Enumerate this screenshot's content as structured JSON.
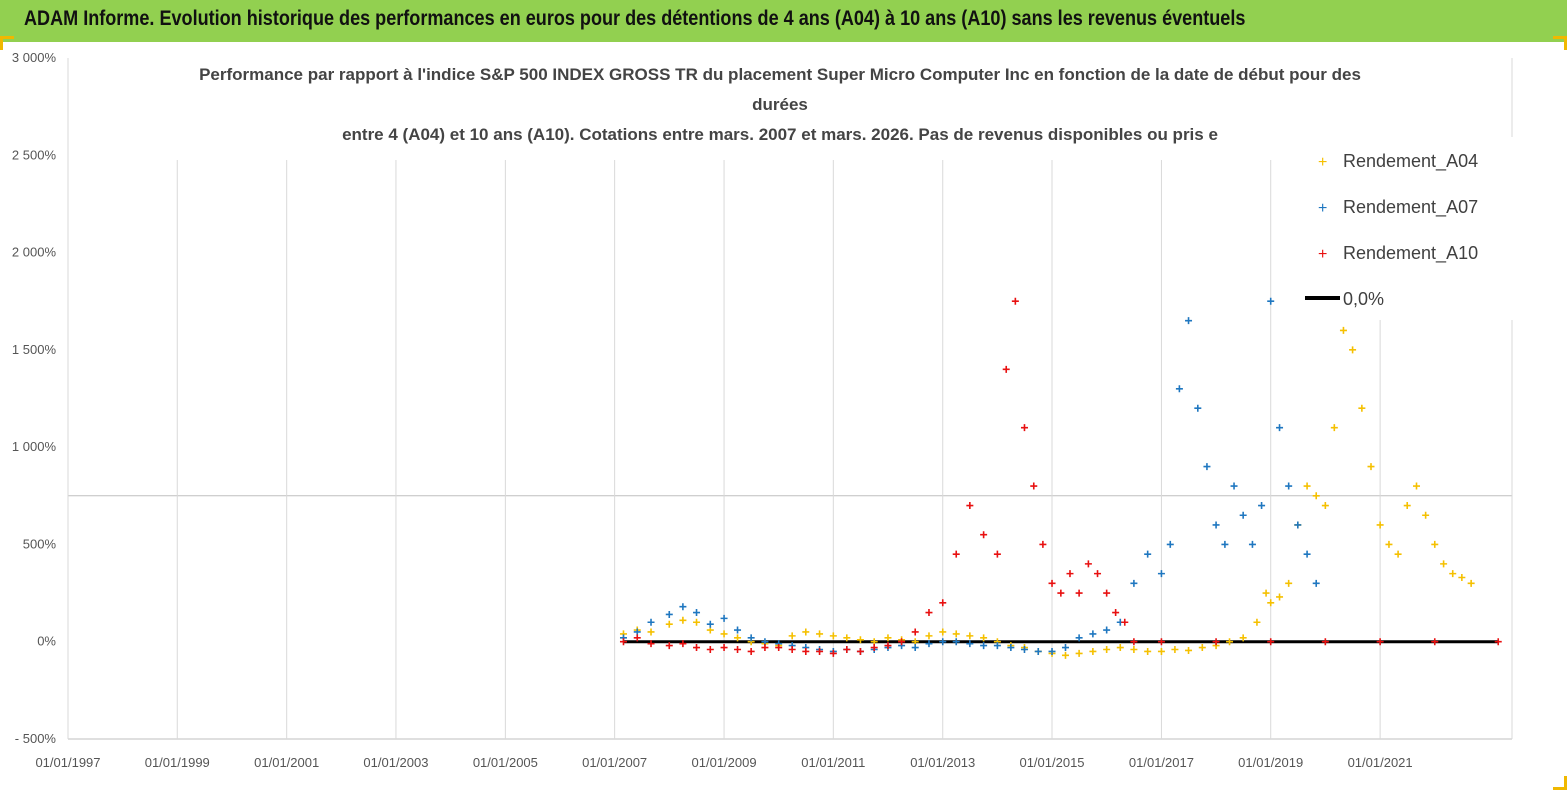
{
  "header": {
    "title": "ADAM Informe. Evolution historique des performances en euros pour des détentions de 4 ans (A04) à 10 ans (A10) sans les revenus éventuels"
  },
  "colors": {
    "header_bg": "#92d050",
    "A04": "#f5c000",
    "A07": "#1f77c0",
    "A10": "#e81010",
    "zero": "#000000",
    "corner_marks": "#f0b800"
  },
  "chart_data": {
    "type": "scatter",
    "title_lines": [
      "Performance par rapport à l'indice S&P 500 INDEX GROSS TR  du placement Super Micro Computer Inc en fonction de la date de début pour des",
      "durées",
      "entre 4 (A04) et 10 ans (A10). Cotations entre mars. 2007 et mars. 2026. Pas de revenus disponibles ou pris e"
    ],
    "x_type": "date",
    "xlim": [
      "1997-01-01",
      "2023-06-01"
    ],
    "x_tick_labels": [
      "01/01/1997",
      "01/01/1999",
      "01/01/2001",
      "01/01/2003",
      "01/01/2005",
      "01/01/2007",
      "01/01/2009",
      "01/01/2011",
      "01/01/2013",
      "01/01/2015",
      "01/01/2017",
      "01/01/2019",
      "01/01/2021"
    ],
    "ylim": [
      -500,
      3000
    ],
    "y_tick_labels": [
      "- 500%",
      "0%",
      "500%",
      "1 000%",
      "1 500%",
      "2 000%",
      "2 500%",
      "3 000%"
    ],
    "y_unit": "%",
    "grid": "vertical",
    "legend_position": "top-right",
    "series": [
      {
        "name": "Rendement_A04",
        "marker": "+",
        "points": [
          [
            "2007-03-01",
            40
          ],
          [
            "2007-06-01",
            60
          ],
          [
            "2007-09-01",
            50
          ],
          [
            "2008-01-01",
            90
          ],
          [
            "2008-04-01",
            110
          ],
          [
            "2008-07-01",
            100
          ],
          [
            "2008-10-01",
            60
          ],
          [
            "2009-01-01",
            40
          ],
          [
            "2009-04-01",
            20
          ],
          [
            "2009-07-01",
            0
          ],
          [
            "2009-10-01",
            -10
          ],
          [
            "2010-01-01",
            -20
          ],
          [
            "2010-04-01",
            30
          ],
          [
            "2010-07-01",
            50
          ],
          [
            "2010-10-01",
            40
          ],
          [
            "2011-01-01",
            30
          ],
          [
            "2011-04-01",
            20
          ],
          [
            "2011-07-01",
            10
          ],
          [
            "2011-10-01",
            0
          ],
          [
            "2012-01-01",
            20
          ],
          [
            "2012-04-01",
            10
          ],
          [
            "2012-07-01",
            0
          ],
          [
            "2012-10-01",
            30
          ],
          [
            "2013-01-01",
            50
          ],
          [
            "2013-04-01",
            40
          ],
          [
            "2013-07-01",
            30
          ],
          [
            "2013-10-01",
            20
          ],
          [
            "2014-01-01",
            0
          ],
          [
            "2014-04-01",
            -20
          ],
          [
            "2014-07-01",
            -30
          ],
          [
            "2014-10-01",
            -50
          ],
          [
            "2015-01-01",
            -60
          ],
          [
            "2015-04-01",
            -70
          ],
          [
            "2015-07-01",
            -60
          ],
          [
            "2015-10-01",
            -50
          ],
          [
            "2016-01-01",
            -40
          ],
          [
            "2016-04-01",
            -30
          ],
          [
            "2016-07-01",
            -40
          ],
          [
            "2016-10-01",
            -50
          ],
          [
            "2017-01-01",
            -50
          ],
          [
            "2017-04-01",
            -40
          ],
          [
            "2017-07-01",
            -45
          ],
          [
            "2017-10-01",
            -30
          ],
          [
            "2018-01-01",
            -20
          ],
          [
            "2018-04-01",
            0
          ],
          [
            "2018-07-01",
            20
          ],
          [
            "2018-10-01",
            100
          ],
          [
            "2018-12-01",
            250
          ],
          [
            "2019-01-01",
            200
          ],
          [
            "2019-03-01",
            230
          ],
          [
            "2019-05-01",
            300
          ],
          [
            "2019-07-01",
            600
          ],
          [
            "2019-09-01",
            800
          ],
          [
            "2019-11-01",
            750
          ],
          [
            "2020-01-01",
            700
          ],
          [
            "2020-03-01",
            1100
          ],
          [
            "2020-05-01",
            1600
          ],
          [
            "2020-07-01",
            1500
          ],
          [
            "2020-09-01",
            1200
          ],
          [
            "2020-11-01",
            900
          ],
          [
            "2021-01-01",
            600
          ],
          [
            "2021-03-01",
            500
          ],
          [
            "2021-05-01",
            450
          ],
          [
            "2021-07-01",
            700
          ],
          [
            "2021-09-01",
            800
          ],
          [
            "2021-11-01",
            650
          ],
          [
            "2022-01-01",
            500
          ],
          [
            "2022-03-01",
            400
          ],
          [
            "2022-05-01",
            350
          ],
          [
            "2022-07-01",
            330
          ],
          [
            "2022-09-01",
            300
          ]
        ]
      },
      {
        "name": "Rendement_A07",
        "marker": "+",
        "points": [
          [
            "2007-03-01",
            20
          ],
          [
            "2007-06-01",
            50
          ],
          [
            "2007-09-01",
            100
          ],
          [
            "2008-01-01",
            140
          ],
          [
            "2008-04-01",
            180
          ],
          [
            "2008-07-01",
            150
          ],
          [
            "2008-10-01",
            90
          ],
          [
            "2009-01-01",
            120
          ],
          [
            "2009-04-01",
            60
          ],
          [
            "2009-07-01",
            20
          ],
          [
            "2009-10-01",
            0
          ],
          [
            "2010-01-01",
            -10
          ],
          [
            "2010-04-01",
            -20
          ],
          [
            "2010-07-01",
            -30
          ],
          [
            "2010-10-01",
            -40
          ],
          [
            "2011-01-01",
            -50
          ],
          [
            "2011-04-01",
            -40
          ],
          [
            "2011-07-01",
            -50
          ],
          [
            "2011-10-01",
            -40
          ],
          [
            "2012-01-01",
            -30
          ],
          [
            "2012-04-01",
            -20
          ],
          [
            "2012-07-01",
            -30
          ],
          [
            "2012-10-01",
            -10
          ],
          [
            "2013-01-01",
            0
          ],
          [
            "2013-04-01",
            0
          ],
          [
            "2013-07-01",
            -10
          ],
          [
            "2013-10-01",
            -20
          ],
          [
            "2014-01-01",
            -20
          ],
          [
            "2014-04-01",
            -30
          ],
          [
            "2014-07-01",
            -40
          ],
          [
            "2014-10-01",
            -50
          ],
          [
            "2015-01-01",
            -50
          ],
          [
            "2015-04-01",
            -30
          ],
          [
            "2015-07-01",
            20
          ],
          [
            "2015-10-01",
            40
          ],
          [
            "2016-01-01",
            60
          ],
          [
            "2016-04-01",
            100
          ],
          [
            "2016-07-01",
            300
          ],
          [
            "2016-10-01",
            450
          ],
          [
            "2017-01-01",
            350
          ],
          [
            "2017-03-01",
            500
          ],
          [
            "2017-05-01",
            1300
          ],
          [
            "2017-07-01",
            1650
          ],
          [
            "2017-09-01",
            1200
          ],
          [
            "2017-11-01",
            900
          ],
          [
            "2018-01-01",
            600
          ],
          [
            "2018-03-01",
            500
          ],
          [
            "2018-05-01",
            800
          ],
          [
            "2018-07-01",
            650
          ],
          [
            "2018-09-01",
            500
          ],
          [
            "2018-11-01",
            700
          ],
          [
            "2019-01-01",
            1750
          ],
          [
            "2019-03-01",
            1100
          ],
          [
            "2019-05-01",
            800
          ],
          [
            "2019-07-01",
            600
          ],
          [
            "2019-09-01",
            450
          ],
          [
            "2019-11-01",
            300
          ]
        ]
      },
      {
        "name": "Rendement_A10",
        "marker": "+",
        "points": [
          [
            "2007-03-01",
            0
          ],
          [
            "2007-06-01",
            20
          ],
          [
            "2007-09-01",
            -10
          ],
          [
            "2008-01-01",
            -20
          ],
          [
            "2008-04-01",
            -10
          ],
          [
            "2008-07-01",
            -30
          ],
          [
            "2008-10-01",
            -40
          ],
          [
            "2009-01-01",
            -30
          ],
          [
            "2009-04-01",
            -40
          ],
          [
            "2009-07-01",
            -50
          ],
          [
            "2009-10-01",
            -30
          ],
          [
            "2010-01-01",
            -30
          ],
          [
            "2010-04-01",
            -40
          ],
          [
            "2010-07-01",
            -50
          ],
          [
            "2010-10-01",
            -50
          ],
          [
            "2011-01-01",
            -60
          ],
          [
            "2011-04-01",
            -40
          ],
          [
            "2011-07-01",
            -50
          ],
          [
            "2011-10-01",
            -30
          ],
          [
            "2012-01-01",
            -20
          ],
          [
            "2012-04-01",
            0
          ],
          [
            "2012-07-01",
            50
          ],
          [
            "2012-10-01",
            150
          ],
          [
            "2013-01-01",
            200
          ],
          [
            "2013-04-01",
            450
          ],
          [
            "2013-07-01",
            700
          ],
          [
            "2013-10-01",
            550
          ],
          [
            "2014-01-01",
            450
          ],
          [
            "2014-03-01",
            1400
          ],
          [
            "2014-05-01",
            1750
          ],
          [
            "2014-07-01",
            1100
          ],
          [
            "2014-09-01",
            800
          ],
          [
            "2014-11-01",
            500
          ],
          [
            "2015-01-01",
            300
          ],
          [
            "2015-03-01",
            250
          ],
          [
            "2015-05-01",
            350
          ],
          [
            "2015-07-01",
            250
          ],
          [
            "2015-09-01",
            400
          ],
          [
            "2015-11-01",
            350
          ],
          [
            "2016-01-01",
            250
          ],
          [
            "2016-03-01",
            150
          ],
          [
            "2016-05-01",
            100
          ],
          [
            "2016-07-01",
            0
          ],
          [
            "2017-01-01",
            0
          ],
          [
            "2018-01-01",
            0
          ],
          [
            "2019-01-01",
            0
          ],
          [
            "2020-01-01",
            0
          ],
          [
            "2021-01-01",
            0
          ],
          [
            "2022-01-01",
            0
          ],
          [
            "2023-03-01",
            0
          ]
        ]
      },
      {
        "name": "0,0%",
        "type": "line",
        "points": [
          [
            "2007-03-01",
            0
          ],
          [
            "2023-03-01",
            0
          ]
        ]
      }
    ]
  }
}
